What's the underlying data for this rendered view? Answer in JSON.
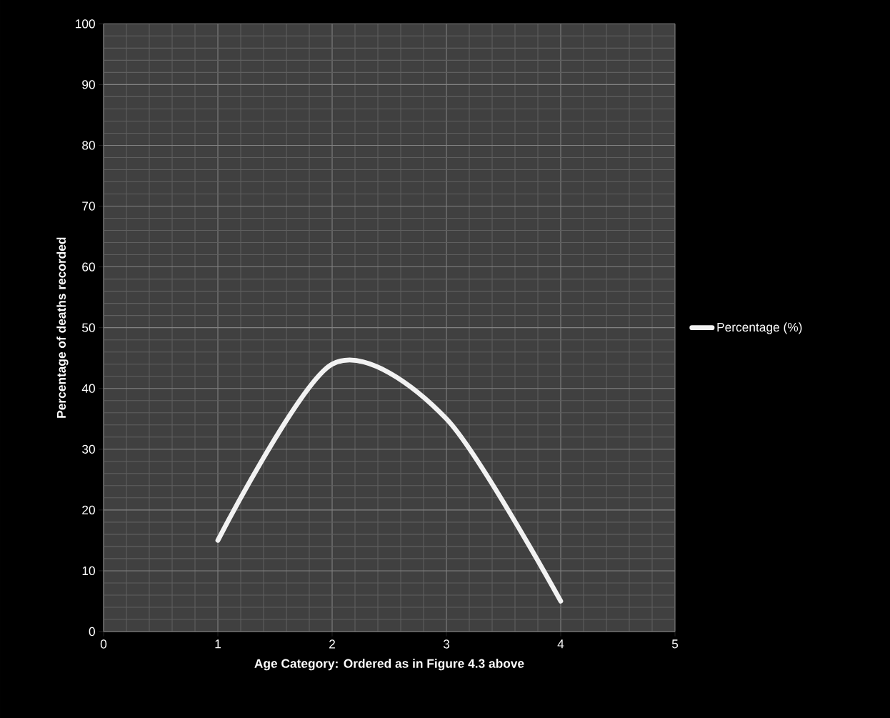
{
  "chart_data": {
    "type": "line",
    "xlabel": "Age Category: Ordered as in Figure 4.3 above",
    "ylabel": "Percentage of deaths recorded",
    "x": [
      1,
      2,
      3,
      4
    ],
    "series": [
      {
        "name": "Percentage (%)",
        "color": "#f2f2f2",
        "values": [
          15,
          44,
          35,
          5
        ]
      }
    ],
    "xlim": [
      0,
      5
    ],
    "xticks": [
      0,
      1,
      2,
      3,
      4,
      5
    ],
    "ylim": [
      0,
      100
    ],
    "yticks": [
      0,
      10,
      20,
      30,
      40,
      50,
      60,
      70,
      80,
      90,
      100
    ],
    "grid": true,
    "legend": "right"
  }
}
